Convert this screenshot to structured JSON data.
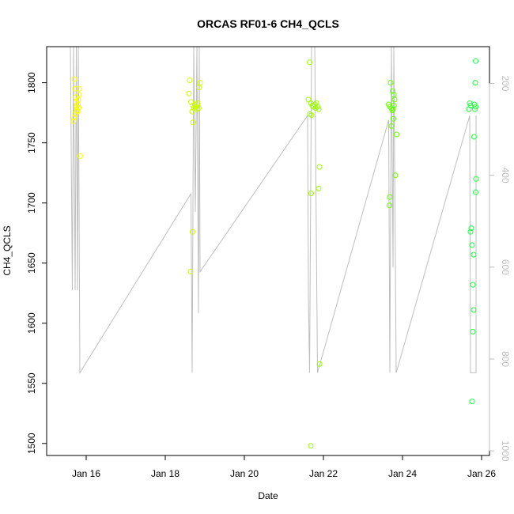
{
  "chart_data": {
    "type": "scatter",
    "title": "ORCAS RF01-6 CH4_QCLS",
    "xlabel": "Date",
    "ylabel": "CH4_QCLS",
    "xlim": [
      "2016-01-15",
      "2016-01-26.2"
    ],
    "ylim": [
      1490,
      1830
    ],
    "x_ticks": [
      "2016-01-16",
      "2016-01-18",
      "2016-01-20",
      "2016-01-22",
      "2016-01-24",
      "2016-01-26"
    ],
    "x_tick_labels": [
      "Jan 16",
      "Jan 18",
      "Jan 20",
      "Jan 22",
      "Jan 24",
      "Jan 26"
    ],
    "y_ticks": [
      1500,
      1550,
      1600,
      1650,
      1700,
      1750,
      1800
    ],
    "y2_label": "",
    "y2_lim": [
      1010,
      120
    ],
    "y2_ticks": [
      200,
      400,
      600,
      800,
      1000
    ],
    "y2_color": "#bebebe",
    "grid": false,
    "legend": "none",
    "series": [
      {
        "color": "#ffff00",
        "points": [
          [
            "2016-01-15.70",
            1803
          ],
          [
            "2016-01-15.72",
            1795
          ],
          [
            "2016-01-15.74",
            1788
          ],
          [
            "2016-01-15.75",
            1784
          ],
          [
            "2016-01-15.76",
            1780
          ],
          [
            "2016-01-15.77",
            1777
          ],
          [
            "2016-01-15.78",
            1776
          ],
          [
            "2016-01-15.72",
            1774
          ],
          [
            "2016-01-15.70",
            1771
          ],
          [
            "2016-01-15.68",
            1768
          ],
          [
            "2016-01-15.80",
            1786
          ],
          [
            "2016-01-15.82",
            1790
          ],
          [
            "2016-01-15.83",
            1795
          ],
          [
            "2016-01-15.79",
            1782
          ],
          [
            "2016-01-15.81",
            1779
          ],
          [
            "2016-01-15.85",
            1739
          ]
        ]
      },
      {
        "color": "#ccff00",
        "points": [
          [
            "2016-01-18.62",
            1802
          ],
          [
            "2016-01-18.60",
            1791
          ],
          [
            "2016-01-18.65",
            1784
          ],
          [
            "2016-01-18.70",
            1781
          ],
          [
            "2016-01-18.72",
            1779
          ],
          [
            "2016-01-18.75",
            1782
          ],
          [
            "2016-01-18.78",
            1780
          ],
          [
            "2016-01-18.80",
            1778
          ],
          [
            "2016-01-18.82",
            1783
          ],
          [
            "2016-01-18.85",
            1779
          ],
          [
            "2016-01-18.88",
            1800
          ],
          [
            "2016-01-18.86",
            1796
          ],
          [
            "2016-01-18.68",
            1776
          ],
          [
            "2016-01-18.70",
            1767
          ],
          [
            "2016-01-18.69",
            1676
          ],
          [
            "2016-01-18.64",
            1643
          ]
        ]
      },
      {
        "color": "#99ff00",
        "points": [
          [
            "2016-01-21.65",
            1817
          ],
          [
            "2016-01-21.62",
            1786
          ],
          [
            "2016-01-21.68",
            1783
          ],
          [
            "2016-01-21.72",
            1781
          ],
          [
            "2016-01-21.75",
            1780
          ],
          [
            "2016-01-21.78",
            1782
          ],
          [
            "2016-01-21.80",
            1779
          ],
          [
            "2016-01-21.82",
            1783
          ],
          [
            "2016-01-21.85",
            1780
          ],
          [
            "2016-01-21.88",
            1778
          ],
          [
            "2016-01-21.70",
            1773
          ],
          [
            "2016-01-21.66",
            1774
          ],
          [
            "2016-01-21.90",
            1730
          ],
          [
            "2016-01-21.88",
            1712
          ],
          [
            "2016-01-21.69",
            1708
          ],
          [
            "2016-01-21.90",
            1566
          ],
          [
            "2016-01-21.68",
            1498
          ]
        ]
      },
      {
        "color": "#66ff00",
        "points": [
          [
            "2016-01-23.70",
            1800
          ],
          [
            "2016-01-23.75",
            1793
          ],
          [
            "2016-01-23.78",
            1790
          ],
          [
            "2016-01-23.80",
            1786
          ],
          [
            "2016-01-23.65",
            1782
          ],
          [
            "2016-01-23.68",
            1780
          ],
          [
            "2016-01-23.72",
            1779
          ],
          [
            "2016-01-23.74",
            1777
          ],
          [
            "2016-01-23.76",
            1778
          ],
          [
            "2016-01-23.78",
            1781
          ],
          [
            "2016-01-23.77",
            1770
          ],
          [
            "2016-01-23.72",
            1764
          ],
          [
            "2016-01-23.85",
            1757
          ],
          [
            "2016-01-23.82",
            1723
          ],
          [
            "2016-01-23.68",
            1705
          ],
          [
            "2016-01-23.67",
            1698
          ]
        ]
      },
      {
        "color": "#22ff44",
        "points": [
          [
            "2016-01-25.85",
            1818
          ],
          [
            "2016-01-25.84",
            1800
          ],
          [
            "2016-01-25.70",
            1783
          ],
          [
            "2016-01-25.72",
            1781
          ],
          [
            "2016-01-25.82",
            1782
          ],
          [
            "2016-01-25.85",
            1780
          ],
          [
            "2016-01-25.83",
            1778
          ],
          [
            "2016-01-25.68",
            1778
          ],
          [
            "2016-01-25.81",
            1755
          ],
          [
            "2016-01-25.86",
            1720
          ],
          [
            "2016-01-25.85",
            1709
          ],
          [
            "2016-01-25.74",
            1679
          ],
          [
            "2016-01-25.72",
            1676
          ],
          [
            "2016-01-25.76",
            1665
          ],
          [
            "2016-01-25.80",
            1657
          ],
          [
            "2016-01-25.78",
            1632
          ],
          [
            "2016-01-25.80",
            1611
          ],
          [
            "2016-01-25.78",
            1593
          ],
          [
            "2016-01-25.76",
            1535
          ]
        ]
      }
    ],
    "altitude_line": {
      "color": "#bebebe",
      "axis": "y2",
      "points": [
        [
          "2016-01-15.60",
          120
        ],
        [
          "2016-01-15.65",
          650
        ],
        [
          "2016-01-15.68",
          120
        ],
        [
          "2016-01-15.72",
          650
        ],
        [
          "2016-01-15.75",
          120
        ],
        [
          "2016-01-15.78",
          650
        ],
        [
          "2016-01-15.80",
          120
        ],
        [
          "2016-01-15.84",
          830
        ],
        [
          "2016-01-18.65",
          440
        ],
        [
          "2016-01-18.68",
          830
        ],
        [
          "2016-01-18.72",
          120
        ],
        [
          "2016-01-18.76",
          480
        ],
        [
          "2016-01-18.80",
          120
        ],
        [
          "2016-01-18.84",
          700
        ],
        [
          "2016-01-18.86",
          120
        ],
        [
          "2016-01-18.88",
          610
        ],
        [
          "2016-01-21.60",
          270
        ],
        [
          "2016-01-21.62",
          660
        ],
        [
          "2016-01-21.65",
          830
        ],
        [
          "2016-01-21.70",
          120
        ],
        [
          "2016-01-21.74",
          120
        ],
        [
          "2016-01-21.78",
          120
        ],
        [
          "2016-01-21.85",
          830
        ],
        [
          "2016-01-23.65",
          280
        ],
        [
          "2016-01-23.68",
          830
        ],
        [
          "2016-01-23.72",
          120
        ],
        [
          "2016-01-23.76",
          600
        ],
        [
          "2016-01-23.78",
          120
        ],
        [
          "2016-01-23.84",
          830
        ],
        [
          "2016-01-25.70",
          270
        ],
        [
          "2016-01-25.72",
          830
        ],
        [
          "2016-01-25.86",
          830
        ],
        [
          "2016-01-25.86",
          270
        ]
      ]
    }
  }
}
